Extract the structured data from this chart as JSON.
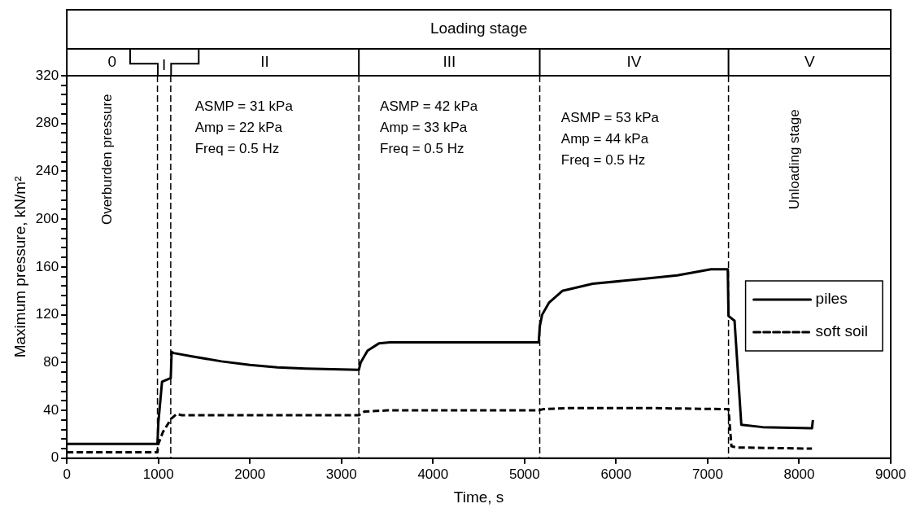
{
  "chart_data": {
    "type": "line",
    "xlabel": "Time, s",
    "ylabel": "Maximum pressure, kN/m²",
    "xlim": [
      0,
      9000
    ],
    "xticks": [
      0,
      1000,
      2000,
      3000,
      4000,
      5000,
      6000,
      7000,
      8000,
      9000
    ],
    "ylim": [
      0,
      320
    ],
    "yticks": [
      0,
      {
        "value": 8,
        "label": null
      },
      {
        "value": 16,
        "label": null
      },
      {
        "value": 24,
        "label": null
      },
      {
        "value": 32,
        "label": null
      },
      40,
      {
        "value": 48,
        "label": null
      },
      {
        "value": 56,
        "label": null
      },
      {
        "value": 64,
        "label": null
      },
      {
        "value": 72,
        "label": null
      },
      80,
      {
        "value": 88,
        "label": null
      },
      {
        "value": 96,
        "label": null
      },
      {
        "value": 104,
        "label": null
      },
      {
        "value": 112,
        "label": null
      },
      120,
      {
        "value": 128,
        "label": null
      },
      {
        "value": 136,
        "label": null
      },
      {
        "value": 144,
        "label": null
      },
      {
        "value": 152,
        "label": null
      },
      160,
      {
        "value": 168,
        "label": null
      },
      {
        "value": 176,
        "label": null
      },
      {
        "value": 184,
        "label": null
      },
      {
        "value": 192,
        "label": null
      },
      200,
      {
        "value": 208,
        "label": null
      },
      {
        "value": 216,
        "label": null
      },
      {
        "value": 224,
        "label": null
      },
      {
        "value": 232,
        "label": null
      },
      240,
      {
        "value": 248,
        "label": null
      },
      {
        "value": 256,
        "label": null
      },
      {
        "value": 264,
        "label": null
      },
      {
        "value": 272,
        "label": null
      },
      280,
      {
        "value": 288,
        "label": null
      },
      {
        "value": 296,
        "label": null
      },
      {
        "value": 304,
        "label": null
      },
      {
        "value": 312,
        "label": null
      },
      320
    ],
    "grid": false,
    "legend": "right",
    "marker": "none",
    "series": [
      {
        "name": "piles",
        "color": "#000000",
        "line_style": "solid",
        "x": [
          0,
          990,
          1000,
          1040,
          1135,
          1145,
          1165,
          1380,
          1690,
          2000,
          2300,
          2610,
          3190,
          3210,
          3285,
          3408,
          3530,
          4011,
          5155,
          5166,
          5192,
          5266,
          5413,
          5745,
          6298,
          6667,
          7036,
          7220,
          7228,
          7294,
          7368,
          7600,
          8140,
          8150
        ],
        "values": [
          12,
          12,
          30,
          64,
          67,
          89,
          88,
          85,
          81,
          78,
          76,
          75,
          74,
          80,
          90,
          96,
          97,
          97,
          97,
          110,
          120,
          130,
          140,
          146,
          150,
          153,
          158,
          158,
          119,
          115,
          28,
          26,
          25,
          32
        ]
      },
      {
        "name": "soft soil",
        "color": "#000000",
        "line_style": "dashed",
        "x": [
          0,
          990,
          1000,
          1050,
          1140,
          1200,
          1254,
          3190,
          3250,
          3500,
          5155,
          5200,
          5500,
          6300,
          7228,
          7260,
          7313,
          8140
        ],
        "values": [
          5,
          5,
          12,
          22,
          33,
          37,
          36,
          36,
          39,
          40,
          40,
          41,
          42,
          42,
          41,
          10,
          9,
          8
        ]
      }
    ],
    "ref_lines": [
      {
        "axis": "x",
        "value": 990,
        "line_style": "dashed"
      },
      {
        "axis": "x",
        "value": 1135,
        "line_style": "dashed"
      },
      {
        "axis": "x",
        "value": 3190,
        "line_style": "dashed"
      },
      {
        "axis": "x",
        "value": 5166,
        "line_style": "dashed"
      },
      {
        "axis": "x",
        "value": 7228,
        "line_style": "dashed"
      }
    ],
    "annotations": [
      "Loading stage",
      "0",
      "I",
      "II",
      "III",
      "IV",
      "V",
      "Overburden pressure",
      "ASMP = 31 kPa\nAmp = 22 kPa\nFreq = 0.5 Hz",
      "ASMP = 42 kPa\nAmp = 33 kPa\nFreq = 0.5 Hz",
      "ASMP = 53 kPa\nAmp = 44 kPa\nFreq = 0.5 Hz",
      "Unloading stage"
    ]
  }
}
